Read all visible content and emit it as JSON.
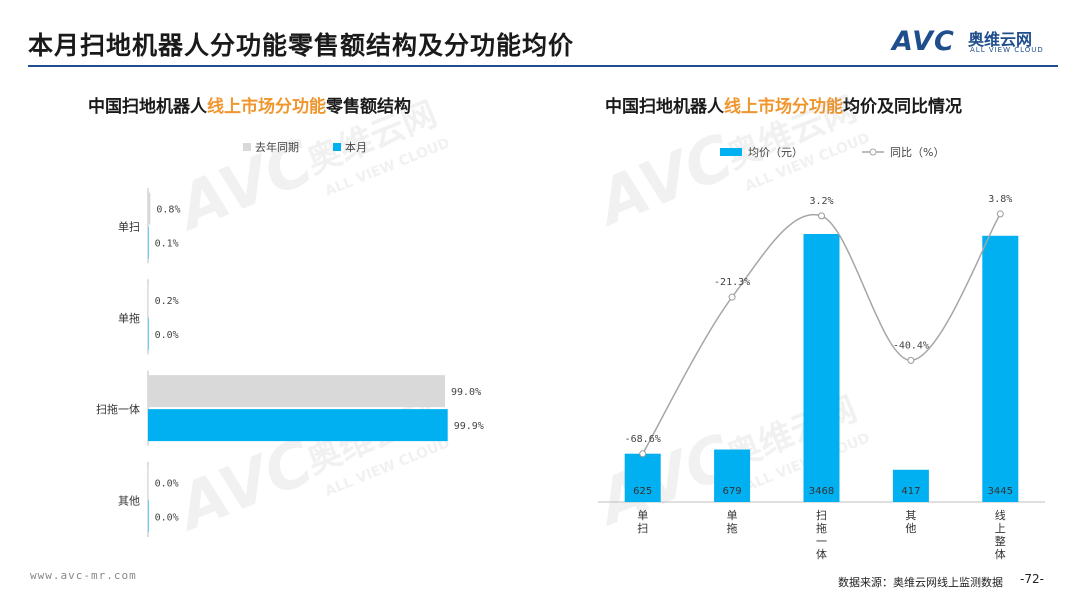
{
  "page": {
    "title": "本月扫地机器人分功能零售额结构及分功能均价",
    "footer_url": "www.avc-mr.com",
    "footer_source": "数据来源：奥维云网线上监测数据",
    "page_number": "-72-"
  },
  "brand": {
    "logo_text": "AVC",
    "logo_cn": "奥维云网",
    "logo_en": "ALL VIEW CLOUD",
    "primary_color": "#1f4e8c",
    "highlight_color": "#f0962e"
  },
  "watermark": {
    "logo": "AVC",
    "cn": "奥维云网",
    "en": "ALL VIEW CLOUD"
  },
  "chart_data": [
    {
      "type": "bar",
      "orientation": "horizontal",
      "title_prefix": "中国扫地机器人",
      "title_highlight": "线上市场分功能",
      "title_suffix": "零售额结构",
      "categories": [
        "单扫",
        "单拖",
        "扫拖一体",
        "其他"
      ],
      "series": [
        {
          "name": "去年同期",
          "color": "#d9d9d9",
          "values": [
            0.8,
            0.2,
            99.0,
            0.0
          ],
          "labels": [
            "0.8%",
            "0.2%",
            "99.0%",
            "0.0%"
          ]
        },
        {
          "name": "本月",
          "color": "#00b0f0",
          "values": [
            0.1,
            0.0,
            99.9,
            0.0
          ],
          "labels": [
            "0.1%",
            "0.0%",
            "99.9%",
            "0.0%"
          ]
        }
      ],
      "xlim": [
        0,
        100
      ],
      "legend": "top"
    },
    {
      "type": "bar+line",
      "title_prefix": "中国扫地机器人",
      "title_highlight": "线上市场分功能",
      "title_suffix": "均价及同比情况",
      "categories": [
        "单扫",
        "单拖",
        "扫拖一体",
        "其他",
        "线上整体"
      ],
      "bar_series": {
        "name": "均价（元）",
        "color": "#00b0f0",
        "values": [
          625,
          679,
          3468,
          417,
          3445
        ],
        "labels": [
          "625",
          "679",
          "3468",
          "417",
          "3445"
        ]
      },
      "line_series": {
        "name": "同比（%）",
        "color": "#a6a6a6",
        "values": [
          -68.6,
          -21.3,
          3.2,
          -40.4,
          3.8
        ],
        "labels": [
          "-68.6%",
          "-21.3%",
          "3.2%",
          "-40.4%",
          "3.8%"
        ]
      },
      "bar_ylim": [
        0,
        3900
      ],
      "line_ylim": [
        -75,
        8
      ],
      "legend": "top"
    }
  ]
}
